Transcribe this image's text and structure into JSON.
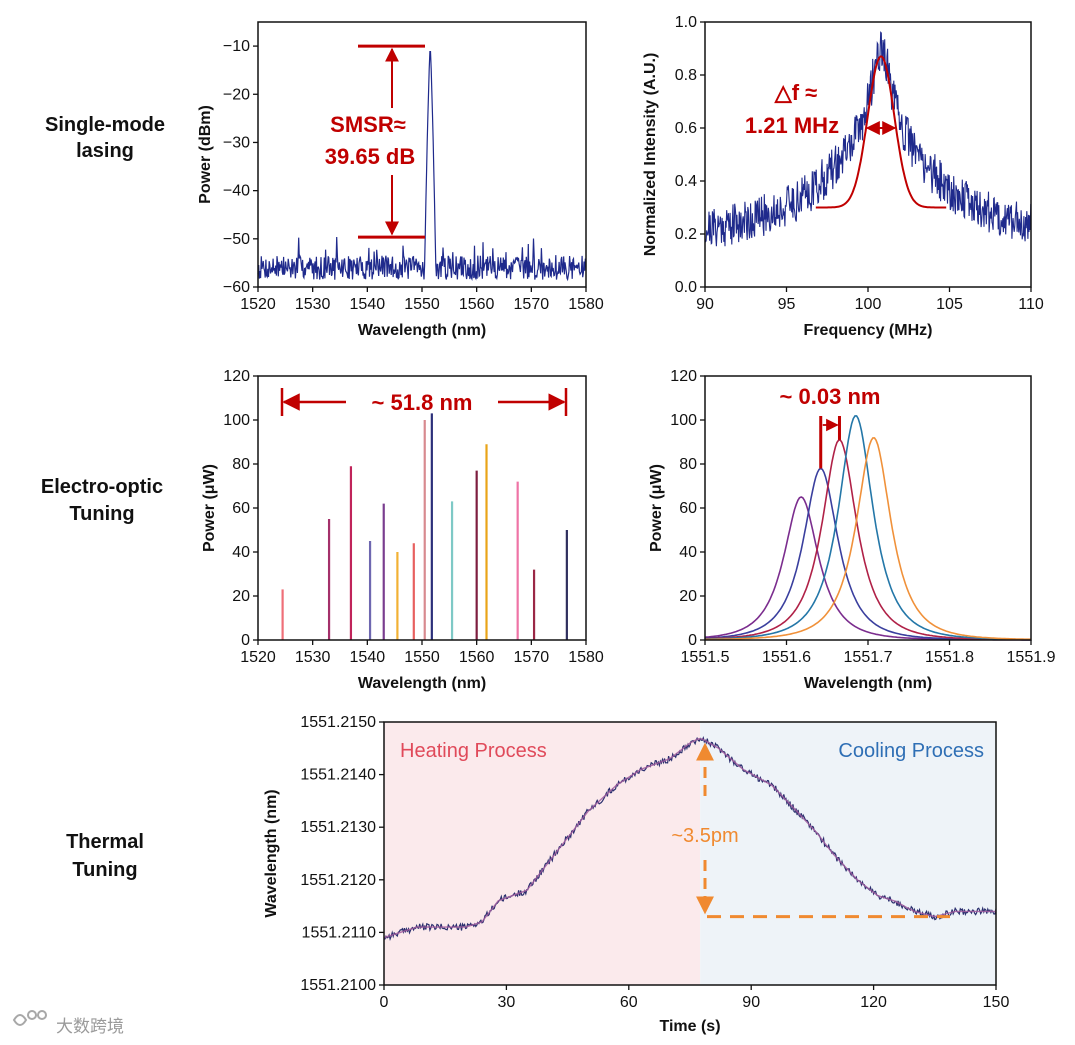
{
  "row_labels": {
    "r1_l1": "Single-mode",
    "r1_l2": "lasing",
    "r2_l1": "Electro-optic",
    "r2_l2": "Tuning",
    "r3_l1": "Thermal",
    "r3_l2": "Tuning"
  },
  "watermark": "大数跨境",
  "colors": {
    "navy": "#1f2a8c",
    "annotation_red": "#c00000",
    "annotation_orange": "#f08a30",
    "heating_text": "#e04a5a",
    "cooling_text": "#2f6fb5",
    "heating_bg": "#fbeaec",
    "cooling_bg": "#eef3f8"
  },
  "chart_data": [
    {
      "id": "spectrum",
      "type": "line",
      "xlabel": "Wavelength (nm)",
      "ylabel": "Power (dBm)",
      "xlim": [
        1520,
        1580
      ],
      "ylim": [
        -60,
        -5
      ],
      "xticks": [
        "1520",
        "1530",
        "1540",
        "1550",
        "1560",
        "1570",
        "1580"
      ],
      "yticks": [
        "-60",
        "-50",
        "-40",
        "-30",
        "-20",
        "-10"
      ],
      "peak": {
        "x": 1551.5,
        "y": -10
      },
      "noise_floor": -56,
      "annotation_line1": "SMSR≈",
      "annotation_line2": "39.65 dB",
      "smsr_range": [
        -49.65,
        -10
      ]
    },
    {
      "id": "linewidth",
      "type": "line",
      "xlabel": "Frequency (MHz)",
      "ylabel": "Normalized Intensity (A.U.)",
      "xlim": [
        90,
        110
      ],
      "ylim": [
        0,
        1.0
      ],
      "xticks": [
        "90",
        "95",
        "100",
        "105",
        "110"
      ],
      "yticks": [
        "0.0",
        "0.2",
        "0.4",
        "0.6",
        "0.8",
        "1.0"
      ],
      "center": 100.8,
      "fit_peak": 0.87,
      "annotation_line1": "△f ≈",
      "annotation_line2": "1.21 MHz",
      "fwhm_span": [
        100.2,
        101.4
      ]
    },
    {
      "id": "eo_tuning",
      "type": "bar",
      "xlabel": "Wavelength (nm)",
      "ylabel": "Power (μW)",
      "xlim": [
        1520,
        1580
      ],
      "ylim": [
        0,
        120
      ],
      "xticks": [
        "1520",
        "1530",
        "1540",
        "1550",
        "1560",
        "1570",
        "1580"
      ],
      "yticks": [
        "0",
        "20",
        "40",
        "60",
        "80",
        "100",
        "120"
      ],
      "lines": [
        {
          "x": 1524.5,
          "y": 23,
          "color": "#ef6f78"
        },
        {
          "x": 1533.0,
          "y": 55,
          "color": "#a4306a"
        },
        {
          "x": 1537.0,
          "y": 79,
          "color": "#c0245a"
        },
        {
          "x": 1540.5,
          "y": 45,
          "color": "#6e67b0"
        },
        {
          "x": 1543.0,
          "y": 62,
          "color": "#7a3d8f"
        },
        {
          "x": 1545.5,
          "y": 40,
          "color": "#f2b134"
        },
        {
          "x": 1548.5,
          "y": 44,
          "color": "#e7605f"
        },
        {
          "x": 1550.5,
          "y": 100,
          "color": "#d88a8f"
        },
        {
          "x": 1551.8,
          "y": 103,
          "color": "#2c2f7a"
        },
        {
          "x": 1555.5,
          "y": 63,
          "color": "#7ec9c6"
        },
        {
          "x": 1560.0,
          "y": 77,
          "color": "#7d1d3f"
        },
        {
          "x": 1561.8,
          "y": 89,
          "color": "#e9a418"
        },
        {
          "x": 1567.5,
          "y": 72,
          "color": "#ef74a6"
        },
        {
          "x": 1570.5,
          "y": 32,
          "color": "#9a2745"
        },
        {
          "x": 1576.5,
          "y": 50,
          "color": "#2f2f5e"
        }
      ],
      "span_annotation": "~ 51.8 nm",
      "span": [
        1524.5,
        1576.3
      ]
    },
    {
      "id": "fine_tuning",
      "type": "line",
      "xlabel": "Wavelength (nm)",
      "ylabel": "Power (μW)",
      "xlim": [
        1551.5,
        1551.9
      ],
      "ylim": [
        0,
        120
      ],
      "xticks": [
        "1551.5",
        "1551.6",
        "1551.7",
        "1551.8",
        "1551.9"
      ],
      "yticks": [
        "0",
        "20",
        "40",
        "60",
        "80",
        "100",
        "120"
      ],
      "series": [
        {
          "center": 1551.618,
          "peak": 65,
          "color": "#7b2d8e"
        },
        {
          "center": 1551.642,
          "peak": 78,
          "color": "#3a3f9e"
        },
        {
          "center": 1551.665,
          "peak": 91,
          "color": "#b02147"
        },
        {
          "center": 1551.685,
          "peak": 102,
          "color": "#2477a8"
        },
        {
          "center": 1551.707,
          "peak": 92,
          "color": "#f0913a"
        }
      ],
      "annotation": "~ 0.03 nm",
      "marker_x": [
        1551.642,
        1551.665
      ]
    },
    {
      "id": "thermal",
      "type": "line",
      "xlabel": "Time (s)",
      "ylabel": "Wavelength (nm)",
      "xlim": [
        0,
        150
      ],
      "ylim": [
        1551.21,
        1551.215
      ],
      "xticks": [
        "0",
        "30",
        "60",
        "90",
        "120",
        "150"
      ],
      "yticks": [
        "1551.2100",
        "1551.2110",
        "1551.2120",
        "1551.2130",
        "1551.2140",
        "1551.2150"
      ],
      "heating_label": "Heating Process",
      "cooling_label": "Cooling Process",
      "switch_time": 77.5,
      "x": [
        0,
        8,
        15,
        20,
        24,
        28,
        35,
        42,
        50,
        57,
        63,
        70,
        75,
        77.5,
        82,
        88,
        95,
        100,
        106,
        110,
        116,
        121,
        125,
        130,
        135,
        140,
        145,
        150
      ],
      "y": [
        1551.2109,
        1551.2111,
        1551.2111,
        1551.2111,
        1551.2112,
        1551.2116,
        1551.2118,
        1551.2125,
        1551.2133,
        1551.2138,
        1551.2141,
        1551.2143,
        1551.2146,
        1551.2147,
        1551.2145,
        1551.2141,
        1551.2138,
        1551.2134,
        1551.2129,
        1551.2125,
        1551.212,
        1551.2117,
        1551.2116,
        1551.2114,
        1551.2113,
        1551.2114,
        1551.2114,
        1551.2114
      ],
      "annotation": "~3.5pm",
      "delta_from": 1551.21465,
      "delta_to": 1551.2113
    }
  ]
}
